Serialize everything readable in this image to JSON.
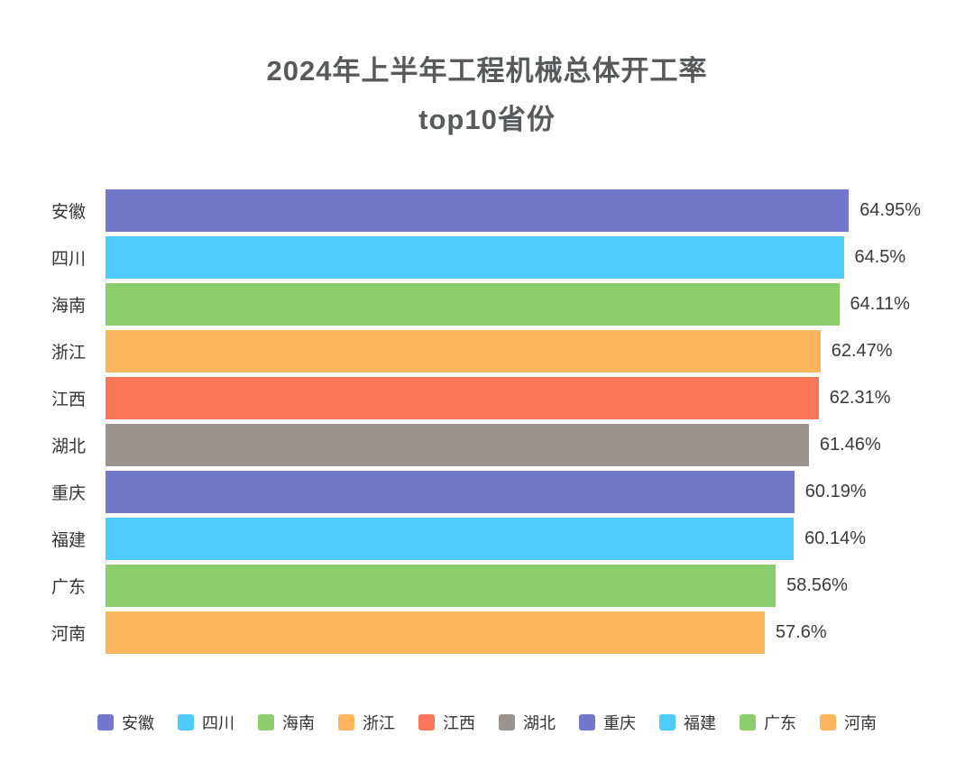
{
  "title": {
    "line1": "2024年上半年工程机械总体开工率",
    "line2": "top10省份"
  },
  "chart_data": {
    "type": "bar",
    "orientation": "horizontal",
    "title": "2024年上半年工程机械总体开工率 top10省份",
    "categories": [
      "安徽",
      "四川",
      "海南",
      "浙江",
      "江西",
      "湖北",
      "重庆",
      "福建",
      "广东",
      "河南"
    ],
    "values": [
      64.95,
      64.5,
      64.11,
      62.47,
      62.31,
      61.46,
      60.19,
      60.14,
      58.56,
      57.6
    ],
    "value_labels": [
      "64.95%",
      "64.5%",
      "64.11%",
      "62.47%",
      "62.31%",
      "61.46%",
      "60.19%",
      "60.14%",
      "58.56%",
      "57.6%"
    ],
    "unit": "%",
    "xlabel": "",
    "ylabel": "",
    "xlim": [
      0,
      65
    ],
    "grid": false,
    "value_labels_visible": true,
    "legend_position": "bottom",
    "bar_colors": [
      "#7277C9",
      "#4DCCFC",
      "#8BCE6B",
      "#FDB55E",
      "#FB7659",
      "#999490",
      "#7277C9",
      "#4DCCFC",
      "#8BCE6B",
      "#FDB55E"
    ]
  },
  "legend": {
    "items": [
      {
        "label": "安徽",
        "color": "#7277C9"
      },
      {
        "label": "四川",
        "color": "#4DCCFC"
      },
      {
        "label": "海南",
        "color": "#8BCE6B"
      },
      {
        "label": "浙江",
        "color": "#FDB55E"
      },
      {
        "label": "江西",
        "color": "#FB7659"
      },
      {
        "label": "湖北",
        "color": "#999490"
      },
      {
        "label": "重庆",
        "color": "#7277C9"
      },
      {
        "label": "福建",
        "color": "#4DCCFC"
      },
      {
        "label": "广东",
        "color": "#8BCE6B"
      },
      {
        "label": "河南",
        "color": "#FDB55E"
      }
    ]
  },
  "colors": {
    "background": "#ffffff",
    "title_text": "#58595b",
    "label_text": "#333333",
    "value_text": "#3a3a3a"
  }
}
